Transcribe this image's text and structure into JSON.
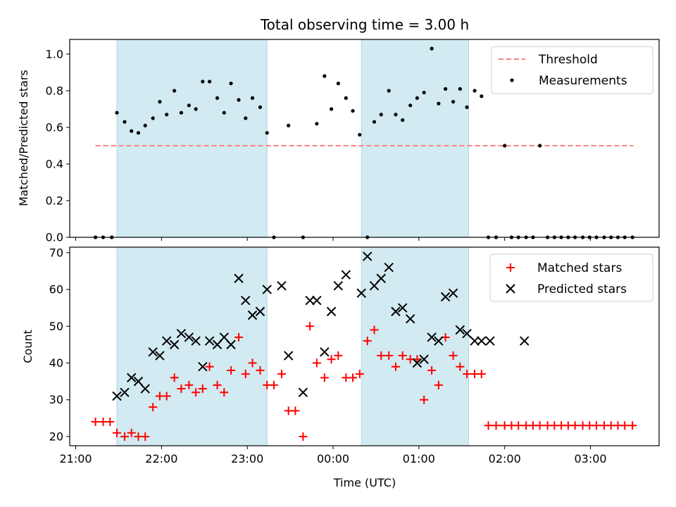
{
  "title": "Total observing time = 3.00 h",
  "colors": {
    "shade": "#add8e6",
    "threshold": "#ff7f7f",
    "measurement": "#000000",
    "matched": "#ff0000",
    "predicted": "#000000"
  },
  "chart_data": [
    {
      "type": "scatter",
      "ylabel": "Matched/Predicted stars",
      "xlim": [
        -0.07,
        6.8
      ],
      "ylim": [
        0.0,
        1.08
      ],
      "yticks": [
        0.0,
        0.2,
        0.4,
        0.6,
        0.8,
        1.0
      ],
      "ytick_labels": [
        "0.0",
        "0.2",
        "0.4",
        "0.6",
        "0.8",
        "1.0"
      ],
      "grid": false,
      "legend": "top-right",
      "shaded_intervals": [
        [
          0.48,
          2.23
        ],
        [
          3.33,
          4.58
        ]
      ],
      "threshold": {
        "name": "Threshold",
        "y": 0.5,
        "x": [
          0.23,
          6.5
        ],
        "style": "dashed"
      },
      "series": [
        {
          "name": "Measurements",
          "marker": "dot",
          "x": [
            0.23,
            0.32,
            0.42,
            0.48,
            0.57,
            0.65,
            0.73,
            0.81,
            0.9,
            0.98,
            1.06,
            1.15,
            1.23,
            1.32,
            1.4,
            1.48,
            1.56,
            1.65,
            1.73,
            1.81,
            1.9,
            1.98,
            2.06,
            2.15,
            2.23,
            2.31,
            2.48,
            2.65,
            2.81,
            2.9,
            2.98,
            3.06,
            3.15,
            3.23,
            3.31,
            3.4,
            3.48,
            3.56,
            3.65,
            3.73,
            3.81,
            3.9,
            3.98,
            4.06,
            4.15,
            4.23,
            4.31,
            4.4,
            4.48,
            4.56,
            4.65,
            4.73,
            4.81,
            4.9,
            5.0,
            5.08,
            5.16,
            5.25,
            5.33,
            5.41,
            5.5,
            5.58,
            5.66,
            5.74,
            5.82,
            5.91,
            5.99,
            6.07,
            6.16,
            6.24,
            6.32,
            6.4,
            6.49
          ],
          "y": [
            0.0,
            0.0,
            0.0,
            0.68,
            0.63,
            0.58,
            0.57,
            0.61,
            0.65,
            0.74,
            0.67,
            0.8,
            0.68,
            0.72,
            0.7,
            0.85,
            0.85,
            0.76,
            0.68,
            0.84,
            0.75,
            0.65,
            0.76,
            0.71,
            0.57,
            0.0,
            0.61,
            0.0,
            0.62,
            0.88,
            0.7,
            0.84,
            0.76,
            0.69,
            0.56,
            0.0,
            0.63,
            0.67,
            0.8,
            0.67,
            0.64,
            0.72,
            0.76,
            0.79,
            1.03,
            0.73,
            0.81,
            0.74,
            0.81,
            0.71,
            0.8,
            0.77,
            0.0,
            0.0,
            0.5,
            0.0,
            0.0,
            0.0,
            0.0,
            0.5,
            0.0,
            0.0,
            0.0,
            0.0,
            0.0,
            0.0,
            0.0,
            0.0,
            0.0,
            0.0,
            0.0,
            0.0,
            0.0
          ]
        }
      ]
    },
    {
      "type": "scatter",
      "ylabel": "Count",
      "xlabel": "Time (UTC)",
      "xlim": [
        -0.07,
        6.8
      ],
      "ylim": [
        17.5,
        71.5
      ],
      "xticks": [
        0,
        1,
        2,
        3,
        4,
        5,
        6
      ],
      "xtick_labels": [
        "21:00",
        "22:00",
        "23:00",
        "00:00",
        "01:00",
        "02:00",
        "03:00"
      ],
      "yticks": [
        20,
        30,
        40,
        50,
        60,
        70
      ],
      "ytick_labels": [
        "20",
        "30",
        "40",
        "50",
        "60",
        "70"
      ],
      "grid": false,
      "legend": "top-right",
      "shaded_intervals": [
        [
          0.48,
          2.23
        ],
        [
          3.33,
          4.58
        ]
      ],
      "series": [
        {
          "name": "Matched stars",
          "marker": "plus",
          "x": [
            0.23,
            0.32,
            0.4,
            0.48,
            0.57,
            0.65,
            0.73,
            0.81,
            0.9,
            0.98,
            1.06,
            1.15,
            1.23,
            1.32,
            1.4,
            1.48,
            1.56,
            1.65,
            1.73,
            1.81,
            1.9,
            1.98,
            2.06,
            2.15,
            2.23,
            2.31,
            2.4,
            2.48,
            2.56,
            2.65,
            2.73,
            2.81,
            2.9,
            2.98,
            3.06,
            3.15,
            3.23,
            3.31,
            3.4,
            3.48,
            3.56,
            3.65,
            3.73,
            3.81,
            3.9,
            3.98,
            4.06,
            4.15,
            4.23,
            4.31,
            4.4,
            4.48,
            4.56,
            4.65,
            4.73,
            4.81,
            4.9,
            5.0,
            5.08,
            5.16,
            5.25,
            5.33,
            5.41,
            5.5,
            5.58,
            5.66,
            5.74,
            5.82,
            5.91,
            5.99,
            6.07,
            6.16,
            6.24,
            6.32,
            6.4,
            6.49
          ],
          "y": [
            24,
            24,
            24,
            21,
            20,
            21,
            20,
            20,
            28,
            31,
            31,
            36,
            33,
            34,
            32,
            33,
            39,
            34,
            32,
            38,
            47,
            37,
            40,
            38,
            34,
            34,
            37,
            27,
            27,
            20,
            50,
            40,
            36,
            41,
            42,
            36,
            36,
            37,
            46,
            49,
            42,
            42,
            39,
            42,
            41,
            41,
            30,
            38,
            34,
            47,
            42,
            39,
            37,
            37,
            37,
            23,
            23,
            23,
            23,
            23,
            23,
            23,
            23,
            23,
            23,
            23,
            23,
            23,
            23,
            23,
            23,
            23,
            23,
            23,
            23,
            23
          ]
        },
        {
          "name": "Predicted stars",
          "marker": "x",
          "x": [
            0.48,
            0.57,
            0.65,
            0.73,
            0.81,
            0.9,
            0.98,
            1.06,
            1.15,
            1.23,
            1.32,
            1.4,
            1.48,
            1.56,
            1.65,
            1.73,
            1.81,
            1.9,
            1.98,
            2.06,
            2.15,
            2.23,
            2.4,
            2.48,
            2.65,
            2.73,
            2.81,
            2.9,
            2.98,
            3.06,
            3.15,
            3.33,
            3.4,
            3.48,
            3.56,
            3.65,
            3.73,
            3.81,
            3.9,
            3.98,
            4.06,
            4.15,
            4.23,
            4.31,
            4.4,
            4.48,
            4.56,
            4.65,
            4.73,
            4.83,
            5.23
          ],
          "y": [
            31,
            32,
            36,
            35,
            33,
            43,
            42,
            46,
            45,
            48,
            47,
            46,
            39,
            46,
            45,
            47,
            45,
            63,
            57,
            53,
            54,
            60,
            61,
            42,
            32,
            57,
            57,
            43,
            54,
            61,
            64,
            59,
            69,
            61,
            63,
            66,
            54,
            55,
            52,
            40,
            41,
            47,
            46,
            58,
            59,
            49,
            48,
            46,
            46,
            46,
            46
          ]
        }
      ]
    }
  ]
}
